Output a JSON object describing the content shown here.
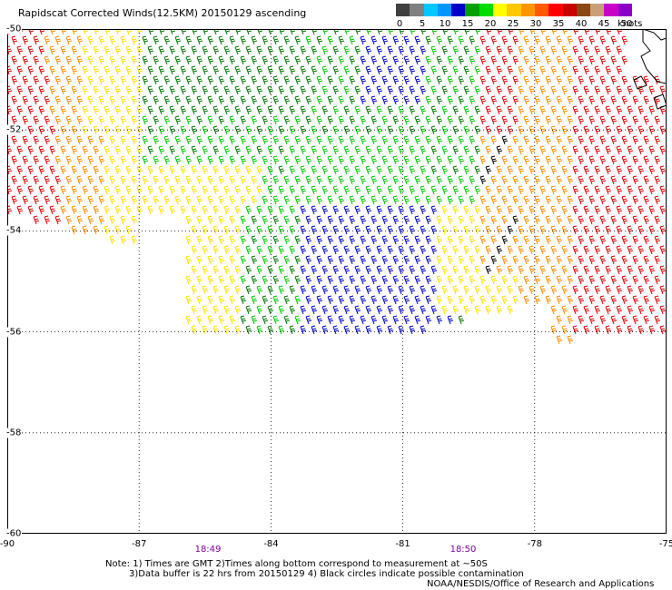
{
  "title": "Rapidscat Corrected Winds(12.5KM) 20150129 ascending",
  "colorbar": {
    "colors": [
      "#404040",
      "#808080",
      "#00c8ff",
      "#0096ff",
      "#0000c8",
      "#00a000",
      "#00dc00",
      "#ffff00",
      "#ffc800",
      "#ff9600",
      "#ff5a00",
      "#ff0000",
      "#c80000",
      "#8c4614",
      "#c8a078",
      "#c800c8",
      "#8c00c8"
    ],
    "tick_labels": [
      "0",
      "5",
      "10",
      "15",
      "20",
      "25",
      "30",
      "35",
      "40",
      "45",
      "50"
    ],
    "unit": "knots"
  },
  "map": {
    "lon_range": [
      -90,
      -75
    ],
    "lat_range": [
      -60,
      -50
    ],
    "x_ticks": [
      "-90",
      "-87",
      "-84",
      "-81",
      "-78",
      "-75"
    ],
    "y_ticks": [
      "-50",
      "-52",
      "-54",
      "-56",
      "-58",
      "-60"
    ],
    "grid": "dotted",
    "wind_speed_colors": {
      "blue": "#0000c8",
      "dark_green": "#007800",
      "green": "#00c800",
      "yellow": "#ffe000",
      "orange": "#ff8c00",
      "red": "#e00000",
      "black": "#000000"
    }
  },
  "times": [
    "18:49",
    "18:50"
  ],
  "notes": {
    "line1": "Note: 1) Times are GMT 2)Times along bottom correspond to measurement at ~50S",
    "line2": "3)Data buffer is 22 hrs from 20150129 4) Black circles indicate possible contamination"
  },
  "credit": "NOAA/NESDIS/Office of Research and Applications"
}
